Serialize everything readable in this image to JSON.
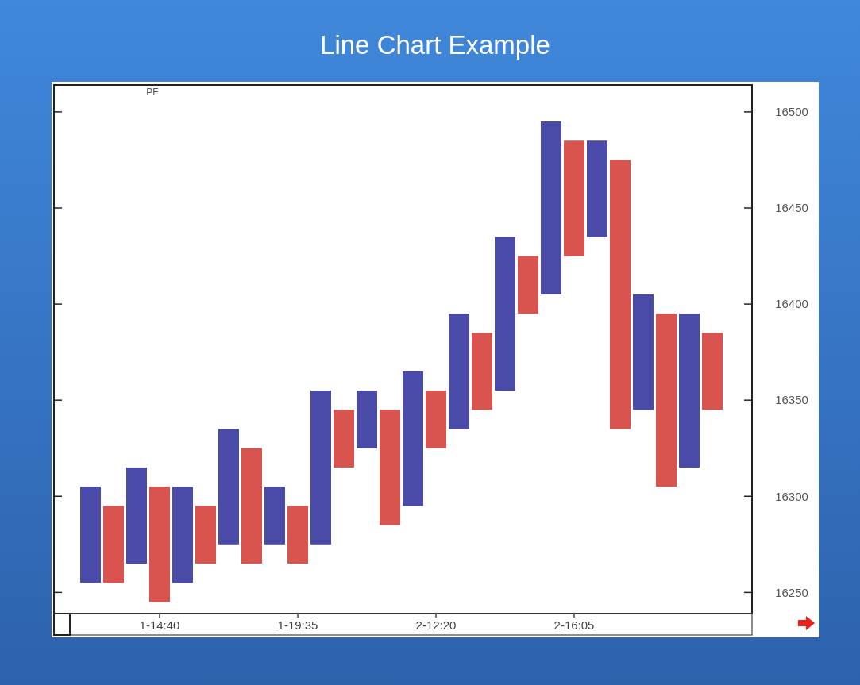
{
  "chart_data": {
    "type": "bar",
    "title": "Line Chart Example",
    "annotations": [
      "PF"
    ],
    "categories": [
      null,
      null,
      null,
      "1-14:40",
      null,
      null,
      null,
      null,
      null,
      "1-19:35",
      null,
      null,
      null,
      null,
      null,
      "2-12:20",
      null,
      null,
      null,
      null,
      null,
      "2-16:05",
      null,
      null,
      null,
      null,
      null,
      null
    ],
    "ylim": [
      16239,
      16514
    ],
    "yticks": [
      16250,
      16300,
      16350,
      16400,
      16450,
      16500
    ],
    "base": [
      16255,
      16255,
      16265,
      16245,
      16255,
      16265,
      16275,
      16265,
      16275,
      16265,
      16275,
      16315,
      16325,
      16285,
      16295,
      16325,
      16335,
      16345,
      16355,
      16395,
      16405,
      16425,
      16435,
      16335,
      16345,
      16305,
      16315,
      16345
    ],
    "values": [
      50,
      40,
      50,
      60,
      50,
      30,
      60,
      60,
      30,
      30,
      80,
      30,
      30,
      60,
      70,
      30,
      60,
      40,
      80,
      30,
      90,
      60,
      50,
      140,
      60,
      90,
      80,
      40
    ],
    "colors": [
      "#4a4aa8",
      "#d9534f",
      "#4a4aa8",
      "#d9534f",
      "#4a4aa8",
      "#d9534f",
      "#4a4aa8",
      "#d9534f",
      "#4a4aa8",
      "#d9534f",
      "#4a4aa8",
      "#d9534f",
      "#4a4aa8",
      "#d9534f",
      "#4a4aa8",
      "#d9534f",
      "#4a4aa8",
      "#d9534f",
      "#4a4aa8",
      "#d9534f",
      "#4a4aa8",
      "#d9534f",
      "#4a4aa8",
      "#d9534f",
      "#4a4aa8",
      "#d9534f",
      "#4a4aa8",
      "#d9534f"
    ]
  }
}
